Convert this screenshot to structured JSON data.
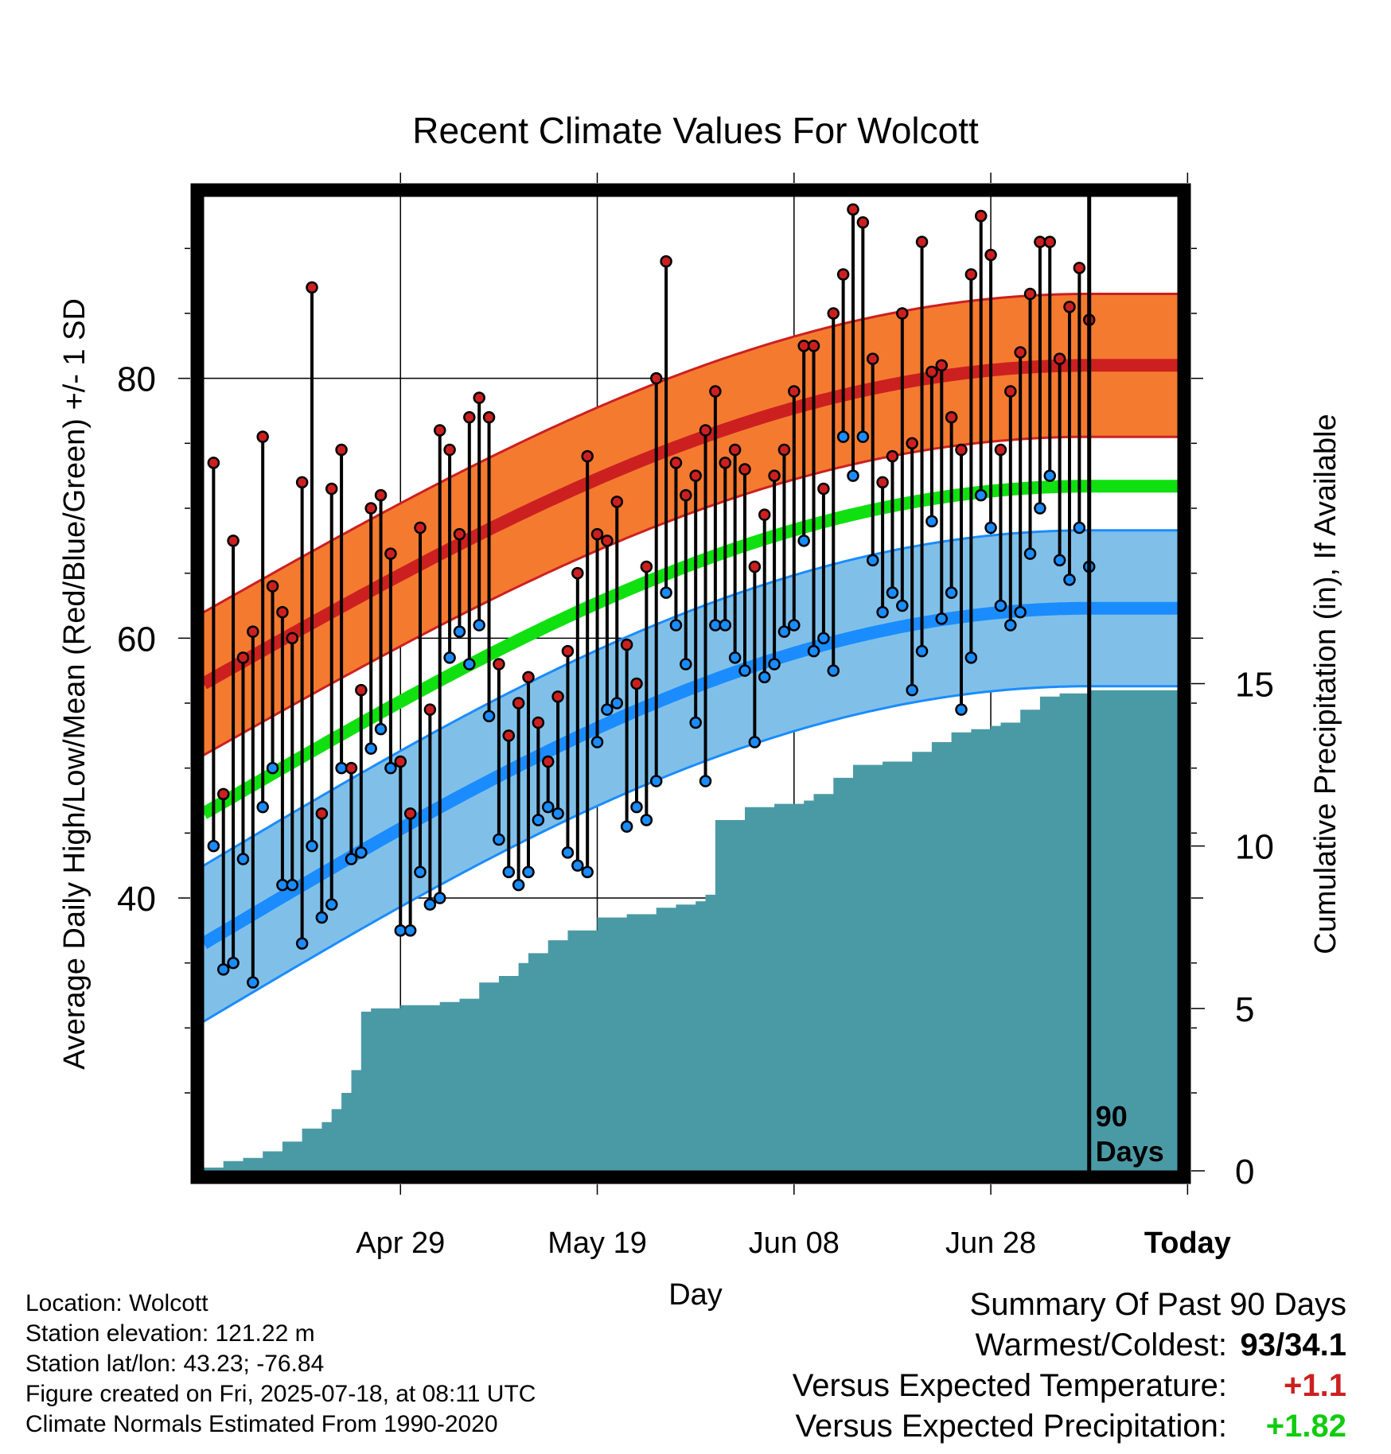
{
  "chart_data": {
    "type": "line",
    "title": "Recent Climate Values For Wolcott",
    "xlabel": "Day",
    "ylabel": "Average Daily High/Low/Mean (Red/Blue/Green) +/- 1 SD",
    "ylabel_right": "Cumulative Precipitation (in), If Available",
    "x_tick_labels": [
      "Apr 29",
      "May 19",
      "Jun 08",
      "Jun 28",
      "Today"
    ],
    "x_range_days": [
      -90,
      9
    ],
    "ylim": [
      19,
      94
    ],
    "yticks": [
      40,
      60,
      80
    ],
    "y2lim": [
      0,
      30
    ],
    "y2ticks": [
      0,
      5,
      10,
      15
    ],
    "grid": true,
    "today_marker": "90\nDays",
    "colors": {
      "high": "#cc2020",
      "high_band": "#f47a30",
      "low": "#1a8cff",
      "low_band": "#80c0e8",
      "mean": "#10e010",
      "precip": "#4a9aa6"
    },
    "normals": {
      "high_mean": [
        56.5,
        81
      ],
      "high_sd": 5.5,
      "low_mean": [
        36.5,
        62.3
      ],
      "low_sd": 6,
      "mean_mean": [
        46.5,
        71.7
      ]
    },
    "daily_high": [
      73.5,
      48,
      67.5,
      58.5,
      60.5,
      75.5,
      64,
      62,
      60,
      72,
      87,
      46.5,
      71.5,
      74.5,
      50,
      56,
      70,
      71,
      66.5,
      50.5,
      46.5,
      68.5,
      54.5,
      76,
      74.5,
      68,
      77,
      78.5,
      77,
      58,
      52.5,
      55,
      57,
      53.5,
      50.5,
      55.5,
      59,
      65,
      74,
      68,
      67.5,
      70.5,
      59.5,
      56.5,
      65.5,
      80,
      89,
      73.5,
      71,
      72.5,
      76,
      79,
      73.5,
      74.5,
      73,
      65.5,
      69.5,
      72.5,
      74.5,
      79,
      82.5,
      82.5,
      71.5,
      85,
      88,
      93,
      92,
      81.5,
      72,
      74,
      85,
      75,
      90.5,
      80.5,
      81,
      77,
      74.5,
      88,
      92.5,
      89.5,
      74.5,
      79,
      82,
      86.5,
      90.5,
      90.5,
      81.5,
      85.5,
      88.5,
      84.5
    ],
    "daily_low": [
      44,
      34.5,
      35,
      43,
      33.5,
      47,
      50,
      41,
      41,
      36.5,
      44,
      38.5,
      39.5,
      50,
      43,
      43.5,
      51.5,
      53,
      50,
      37.5,
      37.5,
      42,
      39.5,
      40,
      58.5,
      60.5,
      58,
      61,
      54,
      44.5,
      42,
      41,
      42,
      46,
      47,
      46.5,
      43.5,
      42.5,
      42,
      52,
      54.5,
      55,
      45.5,
      47,
      46,
      49,
      63.5,
      61,
      58,
      53.5,
      49,
      61,
      61,
      58.5,
      57.5,
      52,
      57,
      58,
      60.5,
      61,
      67.5,
      59,
      60,
      57.5,
      75.5,
      72.5,
      75.5,
      66,
      62,
      63.5,
      62.5,
      56,
      59,
      69,
      61.5,
      63.5,
      54.5,
      58.5,
      71,
      68.5,
      62.5,
      61,
      62,
      66.5,
      70,
      72.5,
      66,
      64.5,
      68.5,
      65.5
    ],
    "precip_cumulative": [
      [
        -90,
        0.1
      ],
      [
        -88,
        0.3
      ],
      [
        -86,
        0.4
      ],
      [
        -84,
        0.6
      ],
      [
        -82,
        0.9
      ],
      [
        -80,
        1.3
      ],
      [
        -78,
        1.5
      ],
      [
        -77,
        1.9
      ],
      [
        -76,
        2.4
      ],
      [
        -75,
        3.1
      ],
      [
        -74,
        4.9
      ],
      [
        -73,
        5
      ],
      [
        -70,
        5.1
      ],
      [
        -66,
        5.2
      ],
      [
        -64,
        5.3
      ],
      [
        -62,
        5.8
      ],
      [
        -60,
        6
      ],
      [
        -58,
        6.4
      ],
      [
        -57,
        6.7
      ],
      [
        -55,
        7.1
      ],
      [
        -53,
        7.4
      ],
      [
        -50,
        7.8
      ],
      [
        -47,
        7.9
      ],
      [
        -44,
        8.1
      ],
      [
        -42,
        8.2
      ],
      [
        -40,
        8.3
      ],
      [
        -39,
        8.5
      ],
      [
        -38,
        10.8
      ],
      [
        -35,
        11.2
      ],
      [
        -32,
        11.3
      ],
      [
        -29,
        11.4
      ],
      [
        -28,
        11.6
      ],
      [
        -26,
        12.1
      ],
      [
        -24,
        12.5
      ],
      [
        -21,
        12.6
      ],
      [
        -18,
        12.9
      ],
      [
        -16,
        13.2
      ],
      [
        -14,
        13.5
      ],
      [
        -12,
        13.6
      ],
      [
        -10,
        13.7
      ],
      [
        -9,
        13.8
      ],
      [
        -7,
        14.2
      ],
      [
        -5,
        14.6
      ],
      [
        -3,
        14.7
      ],
      [
        -1,
        14.7
      ],
      [
        0,
        14.8
      ],
      [
        9,
        14.8
      ]
    ]
  },
  "footer": {
    "location": "Location: Wolcott",
    "elevation": "Station elevation: 121.22 m",
    "latlon": "Station lat/lon: 43.23; -76.84",
    "created": "Figure created on Fri, 2025-07-18, at 08:11 UTC",
    "normals": "Climate Normals Estimated From 1990-2020"
  },
  "summary": {
    "title": "Summary Of Past 90 Days",
    "warmest_label": "Warmest/Coldest:",
    "warmest_value": "93/34.1",
    "temp_label": "Versus Expected Temperature:",
    "temp_value": "+1.1",
    "temp_color": "#cc2020",
    "precip_label": "Versus Expected Precipitation:",
    "precip_value": "+1.82",
    "precip_color": "#10cc10"
  }
}
